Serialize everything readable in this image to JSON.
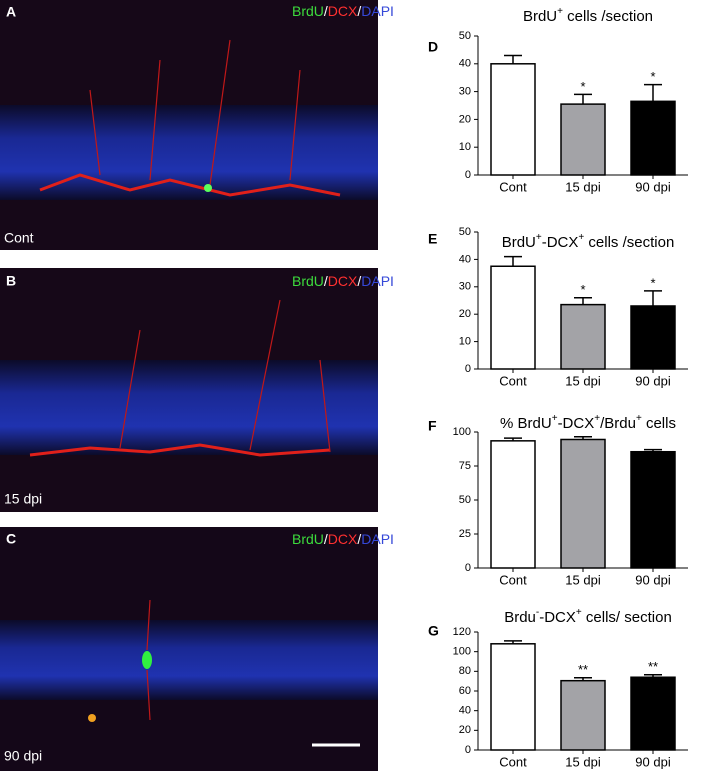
{
  "image_panels": [
    {
      "letter": "A",
      "label": "Cont",
      "stain": [
        "BrdU",
        "/",
        "DCX",
        "/",
        "DAPI"
      ]
    },
    {
      "letter": "B",
      "label": "15 dpi",
      "stain": [
        "BrdU",
        "/",
        "DCX",
        "/",
        "DAPI"
      ]
    },
    {
      "letter": "C",
      "label": "90 dpi",
      "stain": [
        "BrdU",
        "/",
        "DCX",
        "/",
        "DAPI"
      ]
    }
  ],
  "chart_data": [
    {
      "type": "bar",
      "letter": "D",
      "title": [
        {
          "text": "BrdU"
        },
        {
          "text": "+",
          "sup": true
        },
        {
          "text": " cells /section"
        }
      ],
      "categories": [
        "Cont",
        "15 dpi",
        "90 dpi"
      ],
      "colors": [
        "#ffffff",
        "#a3a3a7",
        "#000000"
      ],
      "values": [
        40,
        25.5,
        26.5
      ],
      "errors": [
        3,
        3.5,
        6
      ],
      "annotations": [
        null,
        "*",
        "*"
      ],
      "ylim": [
        0,
        50
      ],
      "yticks": [
        0,
        10,
        20,
        30,
        40,
        50
      ]
    },
    {
      "type": "bar",
      "letter": "E",
      "title": [
        {
          "text": "BrdU"
        },
        {
          "text": "+",
          "sup": true
        },
        {
          "text": "-DCX"
        },
        {
          "text": "+",
          "sup": true
        },
        {
          "text": " cells /section"
        }
      ],
      "categories": [
        "Cont",
        "15 dpi",
        "90 dpi"
      ],
      "colors": [
        "#ffffff",
        "#a3a3a7",
        "#000000"
      ],
      "values": [
        37.5,
        23.5,
        23
      ],
      "errors": [
        3.5,
        2.5,
        5.5
      ],
      "annotations": [
        null,
        "*",
        "*"
      ],
      "ylim": [
        0,
        50
      ],
      "yticks": [
        0,
        10,
        20,
        30,
        40,
        50
      ]
    },
    {
      "type": "bar",
      "letter": "F",
      "title": [
        {
          "text": "% BrdU"
        },
        {
          "text": "+",
          "sup": true
        },
        {
          "text": "-DCX"
        },
        {
          "text": "+",
          "sup": true
        },
        {
          "text": "/Brdu"
        },
        {
          "text": "+",
          "sup": true
        },
        {
          "text": " cells"
        }
      ],
      "categories": [
        "Cont",
        "15 dpi",
        "90 dpi"
      ],
      "colors": [
        "#ffffff",
        "#a3a3a7",
        "#000000"
      ],
      "values": [
        93.5,
        94.5,
        85.5
      ],
      "errors": [
        2,
        2,
        1.5
      ],
      "ylim": [
        0,
        100
      ],
      "yticks": [
        0,
        25,
        50,
        75,
        100
      ]
    },
    {
      "type": "bar",
      "letter": "G",
      "title": [
        {
          "text": "Brdu"
        },
        {
          "text": "-",
          "sup": true
        },
        {
          "text": "-DCX"
        },
        {
          "text": "+",
          "sup": true
        },
        {
          "text": " cells/ section"
        }
      ],
      "categories": [
        "Cont",
        "15 dpi",
        "90 dpi"
      ],
      "colors": [
        "#ffffff",
        "#a3a3a7",
        "#000000"
      ],
      "values": [
        108,
        70.5,
        74
      ],
      "errors": [
        3,
        3,
        2.5
      ],
      "annotations": [
        null,
        "**",
        "**"
      ],
      "ylim": [
        0,
        120
      ],
      "yticks": [
        0,
        20,
        40,
        60,
        80,
        100,
        120
      ]
    }
  ]
}
